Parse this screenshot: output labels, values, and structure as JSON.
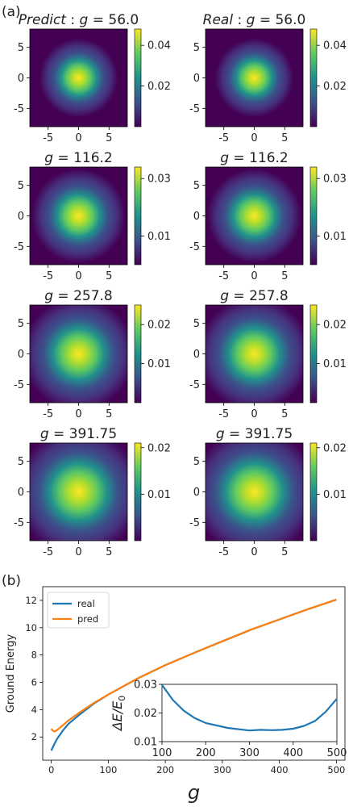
{
  "panel_labels": {
    "a": "(a)",
    "b": "(b)"
  },
  "colors": {
    "real": "#1f77b4",
    "pred": "#ff7f0e",
    "viridis": [
      "#440154",
      "#3b528b",
      "#21918c",
      "#5ec962",
      "#fde725"
    ]
  },
  "chart_data": [
    {
      "type": "heatmap",
      "panel": "a",
      "colormap": "viridis",
      "xlim": [
        -8,
        8
      ],
      "ylim": [
        -8,
        8
      ],
      "x_ticks": [
        "-5",
        "0",
        "5"
      ],
      "y_ticks": [
        "5",
        "0",
        "-5"
      ],
      "grid": false,
      "maps": [
        {
          "title_prefix": "Predict",
          "g_text": "56.0",
          "vmax": 0.048,
          "sigma": 2.3,
          "colorbar_ticks": [
            "0.04",
            "0.02"
          ],
          "colorbar_values": [
            0.04,
            0.02
          ]
        },
        {
          "title_prefix": "Real",
          "g_text": "56.0",
          "vmax": 0.048,
          "sigma": 2.3,
          "colorbar_ticks": [
            "0.04",
            "0.02"
          ],
          "colorbar_values": [
            0.04,
            0.02
          ]
        },
        {
          "title_prefix": "",
          "g_text": "116.2",
          "vmax": 0.034,
          "sigma": 2.75,
          "colorbar_ticks": [
            "0.03",
            "0.01"
          ],
          "colorbar_values": [
            0.03,
            0.01
          ]
        },
        {
          "title_prefix": "",
          "g_text": "116.2",
          "vmax": 0.034,
          "sigma": 2.75,
          "colorbar_ticks": [
            "0.03",
            "0.01"
          ],
          "colorbar_values": [
            0.03,
            0.01
          ]
        },
        {
          "title_prefix": "",
          "g_text": "257.8",
          "vmax": 0.025,
          "sigma": 3.3,
          "colorbar_ticks": [
            "0.02",
            "0.01"
          ],
          "colorbar_values": [
            0.02,
            0.01
          ]
        },
        {
          "title_prefix": "",
          "g_text": "257.8",
          "vmax": 0.025,
          "sigma": 3.3,
          "colorbar_ticks": [
            "0.02",
            "0.01"
          ],
          "colorbar_values": [
            0.02,
            0.01
          ]
        },
        {
          "title_prefix": "",
          "g_text": "391.75",
          "vmax": 0.021,
          "sigma": 3.7,
          "colorbar_ticks": [
            "0.02",
            "0.01"
          ],
          "colorbar_values": [
            0.02,
            0.01
          ]
        },
        {
          "title_prefix": "",
          "g_text": "391.75",
          "vmax": 0.021,
          "sigma": 3.7,
          "colorbar_ticks": [
            "0.02",
            "0.01"
          ],
          "colorbar_values": [
            0.02,
            0.01
          ]
        }
      ]
    },
    {
      "type": "line",
      "panel": "b",
      "xlabel": "g",
      "ylabel": "Ground Energy",
      "xlim": [
        -15,
        515
      ],
      "ylim": [
        0.3,
        13
      ],
      "x_ticks": [
        0,
        100,
        200,
        300,
        400,
        500
      ],
      "y_ticks": [
        2,
        4,
        6,
        8,
        10,
        12
      ],
      "legend_position": "top-left",
      "series": [
        {
          "name": "real",
          "x": [
            0,
            5,
            10,
            20,
            30,
            50,
            75,
            100,
            150,
            200,
            250,
            300,
            350,
            400,
            450,
            500
          ],
          "y": [
            1.0,
            1.45,
            1.85,
            2.45,
            2.95,
            3.65,
            4.45,
            5.1,
            6.25,
            7.25,
            8.15,
            9.0,
            9.85,
            10.6,
            11.35,
            12.05
          ]
        },
        {
          "name": "pred",
          "x": [
            0,
            3,
            6,
            10,
            20,
            30,
            50,
            75,
            100,
            150,
            200,
            250,
            300,
            350,
            400,
            450,
            500
          ],
          "y": [
            2.6,
            2.45,
            2.4,
            2.5,
            2.85,
            3.2,
            3.8,
            4.5,
            5.1,
            6.25,
            7.25,
            8.15,
            9.0,
            9.85,
            10.6,
            11.35,
            12.05
          ]
        }
      ],
      "inset": {
        "ylabel": "ΔE/E_0",
        "xlim": [
          100,
          500
        ],
        "ylim": [
          0.01,
          0.03
        ],
        "x_ticks": [
          100,
          200,
          300,
          400,
          500
        ],
        "y_ticks": [
          "0.03",
          "0.02",
          "0.01"
        ],
        "series": [
          {
            "x": [
              100,
              125,
              150,
              175,
              200,
              250,
              300,
              325,
              350,
              375,
              400,
              425,
              450,
              475,
              500
            ],
            "y": [
              0.0298,
              0.0245,
              0.0208,
              0.0182,
              0.0165,
              0.0148,
              0.0139,
              0.0141,
              0.014,
              0.0141,
              0.0145,
              0.0155,
              0.0172,
              0.0205,
              0.025
            ]
          }
        ]
      }
    }
  ]
}
